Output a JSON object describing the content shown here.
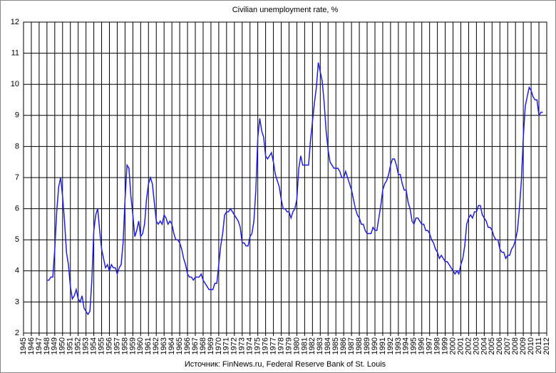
{
  "chart_data": {
    "type": "line",
    "title": "Civilian unemployment rate, %",
    "source": "Источник: FinNews.ru, Federal Reserve Bank of St. Louis",
    "color": "#1f1fe0",
    "grid": true,
    "xlim": [
      1945,
      2012
    ],
    "ylim": [
      2,
      12
    ],
    "yticks": [
      2,
      3,
      4,
      5,
      6,
      7,
      8,
      9,
      10,
      11,
      12
    ],
    "xticks": [
      1945,
      1946,
      1947,
      1948,
      1949,
      1950,
      1951,
      1952,
      1953,
      1954,
      1955,
      1956,
      1957,
      1958,
      1959,
      1960,
      1961,
      1962,
      1963,
      1964,
      1965,
      1966,
      1967,
      1968,
      1969,
      1970,
      1971,
      1972,
      1973,
      1974,
      1975,
      1976,
      1977,
      1978,
      1979,
      1980,
      1981,
      1982,
      1983,
      1984,
      1985,
      1986,
      1987,
      1988,
      1989,
      1990,
      1991,
      1992,
      1993,
      1994,
      1995,
      1996,
      1997,
      1998,
      1999,
      2000,
      2001,
      2002,
      2003,
      2004,
      2005,
      2006,
      2007,
      2008,
      2009,
      2010,
      2011,
      2012
    ],
    "x": [
      1948,
      1948.25,
      1948.5,
      1948.75,
      1949,
      1949.25,
      1949.5,
      1949.75,
      1950,
      1950.25,
      1950.5,
      1950.75,
      1951,
      1951.25,
      1951.5,
      1951.75,
      1952,
      1952.25,
      1952.5,
      1952.75,
      1953,
      1953.25,
      1953.5,
      1953.75,
      1954,
      1954.25,
      1954.5,
      1954.75,
      1955,
      1955.25,
      1955.5,
      1955.75,
      1956,
      1956.25,
      1956.5,
      1956.75,
      1957,
      1957.25,
      1957.5,
      1957.75,
      1958,
      1958.25,
      1958.5,
      1958.75,
      1959,
      1959.25,
      1959.5,
      1959.75,
      1960,
      1960.25,
      1960.5,
      1960.75,
      1961,
      1961.25,
      1961.5,
      1961.75,
      1962,
      1962.25,
      1962.5,
      1962.75,
      1963,
      1963.25,
      1963.5,
      1963.75,
      1964,
      1964.25,
      1964.5,
      1964.75,
      1965,
      1965.25,
      1965.5,
      1965.75,
      1966,
      1966.25,
      1966.5,
      1966.75,
      1967,
      1967.25,
      1967.5,
      1967.75,
      1968,
      1968.25,
      1968.5,
      1968.75,
      1969,
      1969.25,
      1969.5,
      1969.75,
      1970,
      1970.25,
      1970.5,
      1970.75,
      1971,
      1971.25,
      1971.5,
      1971.75,
      1972,
      1972.25,
      1972.5,
      1972.75,
      1973,
      1973.25,
      1973.5,
      1973.75,
      1974,
      1974.25,
      1974.5,
      1974.75,
      1975,
      1975.25,
      1975.5,
      1975.75,
      1976,
      1976.25,
      1976.5,
      1976.75,
      1977,
      1977.25,
      1977.5,
      1977.75,
      1978,
      1978.25,
      1978.5,
      1978.75,
      1979,
      1979.25,
      1979.5,
      1979.75,
      1980,
      1980.25,
      1980.5,
      1980.75,
      1981,
      1981.25,
      1981.5,
      1981.75,
      1982,
      1982.25,
      1982.5,
      1982.75,
      1983,
      1983.25,
      1983.5,
      1983.75,
      1984,
      1984.25,
      1984.5,
      1984.75,
      1985,
      1985.25,
      1985.5,
      1985.75,
      1986,
      1986.25,
      1986.5,
      1986.75,
      1987,
      1987.25,
      1987.5,
      1987.75,
      1988,
      1988.25,
      1988.5,
      1988.75,
      1989,
      1989.25,
      1989.5,
      1989.75,
      1990,
      1990.25,
      1990.5,
      1990.75,
      1991,
      1991.25,
      1991.5,
      1991.75,
      1992,
      1992.25,
      1992.5,
      1992.75,
      1993,
      1993.25,
      1993.5,
      1993.75,
      1994,
      1994.25,
      1994.5,
      1994.75,
      1995,
      1995.25,
      1995.5,
      1995.75,
      1996,
      1996.25,
      1996.5,
      1996.75,
      1997,
      1997.25,
      1997.5,
      1997.75,
      1998,
      1998.25,
      1998.5,
      1998.75,
      1999,
      1999.25,
      1999.5,
      1999.75,
      2000,
      2000.25,
      2000.5,
      2000.75,
      2001,
      2001.25,
      2001.5,
      2001.75,
      2002,
      2002.25,
      2002.5,
      2002.75,
      2003,
      2003.25,
      2003.5,
      2003.75,
      2004,
      2004.25,
      2004.5,
      2004.75,
      2005,
      2005.25,
      2005.5,
      2005.75,
      2006,
      2006.25,
      2006.5,
      2006.75,
      2007,
      2007.25,
      2007.5,
      2007.75,
      2008,
      2008.25,
      2008.5,
      2008.75,
      2009,
      2009.25,
      2009.5,
      2009.75,
      2010,
      2010.25,
      2010.5,
      2010.75,
      2011,
      2011.25,
      2011.5
    ],
    "values": [
      3.7,
      3.7,
      3.8,
      3.8,
      4.7,
      5.9,
      6.7,
      7.0,
      6.4,
      5.6,
      4.6,
      4.2,
      3.5,
      3.1,
      3.2,
      3.4,
      3.1,
      3.0,
      3.2,
      2.8,
      2.7,
      2.6,
      2.7,
      3.7,
      5.3,
      5.8,
      6.0,
      5.3,
      4.7,
      4.4,
      4.1,
      4.2,
      4.0,
      4.2,
      4.1,
      4.1,
      3.9,
      4.1,
      4.2,
      4.9,
      6.3,
      7.4,
      7.3,
      6.4,
      5.8,
      5.1,
      5.3,
      5.6,
      5.1,
      5.2,
      5.5,
      6.3,
      6.8,
      7.0,
      6.8,
      6.2,
      5.6,
      5.5,
      5.6,
      5.5,
      5.8,
      5.7,
      5.5,
      5.6,
      5.5,
      5.2,
      5.0,
      5.0,
      4.9,
      4.7,
      4.4,
      4.2,
      3.9,
      3.8,
      3.8,
      3.7,
      3.8,
      3.8,
      3.8,
      3.9,
      3.7,
      3.6,
      3.5,
      3.4,
      3.4,
      3.4,
      3.6,
      3.6,
      4.2,
      4.8,
      5.2,
      5.8,
      5.9,
      5.9,
      6.0,
      5.9,
      5.8,
      5.7,
      5.6,
      5.4,
      4.9,
      4.9,
      4.8,
      4.8,
      5.1,
      5.2,
      5.6,
      6.6,
      8.3,
      8.9,
      8.5,
      8.3,
      7.7,
      7.6,
      7.7,
      7.8,
      7.5,
      7.1,
      6.9,
      6.7,
      6.3,
      6.0,
      6.0,
      5.9,
      5.9,
      5.7,
      5.9,
      6.0,
      6.3,
      7.3,
      7.7,
      7.4,
      7.4,
      7.4,
      7.4,
      8.2,
      8.8,
      9.4,
      9.9,
      10.7,
      10.4,
      10.1,
      9.4,
      8.5,
      7.9,
      7.5,
      7.4,
      7.3,
      7.3,
      7.3,
      7.2,
      7.0,
      7.0,
      7.2,
      7.0,
      6.8,
      6.6,
      6.3,
      6.0,
      5.8,
      5.7,
      5.5,
      5.5,
      5.3,
      5.2,
      5.2,
      5.2,
      5.4,
      5.3,
      5.3,
      5.7,
      6.1,
      6.6,
      6.8,
      6.9,
      7.1,
      7.4,
      7.6,
      7.6,
      7.4,
      7.1,
      7.1,
      6.8,
      6.6,
      6.6,
      6.2,
      6.0,
      5.6,
      5.5,
      5.7,
      5.7,
      5.6,
      5.5,
      5.5,
      5.3,
      5.3,
      5.2,
      5.0,
      4.9,
      4.7,
      4.6,
      4.4,
      4.5,
      4.4,
      4.3,
      4.3,
      4.2,
      4.1,
      4.0,
      3.9,
      4.0,
      3.9,
      4.2,
      4.4,
      4.8,
      5.5,
      5.7,
      5.8,
      5.7,
      5.9,
      5.9,
      6.1,
      6.1,
      5.8,
      5.7,
      5.6,
      5.4,
      5.4,
      5.3,
      5.1,
      5.0,
      5.0,
      4.7,
      4.6,
      4.6,
      4.4,
      4.5,
      4.5,
      4.7,
      4.8,
      5.0,
      5.3,
      6.0,
      6.9,
      8.3,
      9.3,
      9.6,
      9.9,
      9.8,
      9.6,
      9.5,
      9.5,
      9.0,
      9.1,
      9.1
    ]
  }
}
